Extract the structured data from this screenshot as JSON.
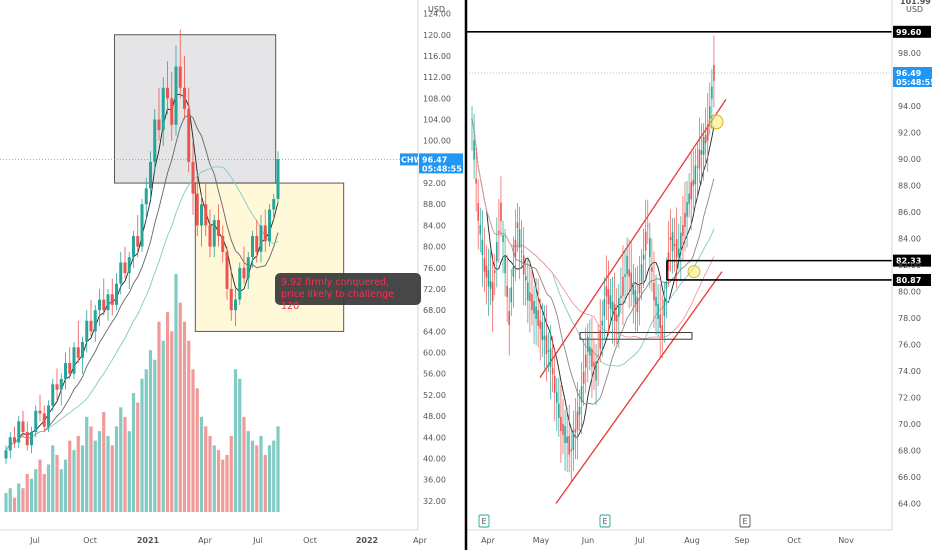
{
  "colors": {
    "up": "#26a69a",
    "down": "#ef5350",
    "vol_up": "#80cbc4",
    "vol_down": "#f19a9a",
    "price_tag": "#2196f3",
    "note_text": "#ff2a55",
    "channel": "#e53935"
  },
  "note": {
    "text": "9.92 firmly conquered, price likely to challenge 120"
  },
  "chart_data": [
    {
      "type": "candlestick",
      "timeframe": "weekly",
      "symbol": "CHWY",
      "currency": "USD",
      "last_price": 96.47,
      "countdown": "05:48:55",
      "y_ticks": [
        "124.00",
        "120.00",
        "116.00",
        "112.00",
        "108.00",
        "104.00",
        "100.00",
        "96.00",
        "92.00",
        "88.00",
        "84.00",
        "80.00",
        "76.00",
        "72.00",
        "68.00",
        "64.00",
        "60.00",
        "56.00",
        "52.00",
        "48.00",
        "44.00",
        "40.00",
        "36.00",
        "32.00"
      ],
      "x_ticks": [
        "Jul",
        "Oct",
        "2021",
        "Apr",
        "Jul",
        "Oct",
        "2022",
        "Apr"
      ],
      "ylim": [
        28,
        126
      ],
      "candles": [
        [
          40,
          42.5,
          39,
          41.5
        ],
        [
          41.5,
          45,
          40,
          44
        ],
        [
          44,
          46,
          42,
          43
        ],
        [
          43,
          48,
          42,
          47
        ],
        [
          47,
          49,
          44,
          45
        ],
        [
          45,
          47,
          41.5,
          42.5
        ],
        [
          42.5,
          46,
          41,
          45
        ],
        [
          45,
          50,
          44,
          49
        ],
        [
          49,
          52,
          47,
          48.5
        ],
        [
          48.5,
          50,
          45,
          46
        ],
        [
          46,
          51,
          45,
          50
        ],
        [
          50,
          55,
          49,
          54
        ],
        [
          54,
          57,
          51,
          53
        ],
        [
          53,
          56,
          50,
          55
        ],
        [
          55,
          60,
          53,
          58
        ],
        [
          58,
          61,
          55,
          56
        ],
        [
          56,
          62,
          55,
          61
        ],
        [
          61,
          66,
          58,
          59
        ],
        [
          59,
          63,
          56,
          62
        ],
        [
          62,
          68,
          60,
          66
        ],
        [
          66,
          70,
          63,
          64
        ],
        [
          64,
          69,
          62,
          68
        ],
        [
          68,
          72,
          65,
          70
        ],
        [
          70,
          74,
          67,
          68
        ],
        [
          68,
          72,
          66,
          71
        ],
        [
          71,
          74,
          67,
          69
        ],
        [
          69,
          75,
          68,
          73
        ],
        [
          73,
          79,
          71,
          77
        ],
        [
          77,
          80,
          74,
          75
        ],
        [
          75,
          79,
          72,
          78
        ],
        [
          78,
          83,
          76,
          82
        ],
        [
          82,
          86,
          78,
          80
        ],
        [
          80,
          89,
          79,
          88
        ],
        [
          88,
          93,
          85,
          91
        ],
        [
          91,
          98,
          89,
          96
        ],
        [
          96,
          106,
          94,
          104
        ],
        [
          104,
          110,
          100,
          102
        ],
        [
          102,
          112,
          99,
          110
        ],
        [
          110,
          115,
          105,
          108
        ],
        [
          108,
          113,
          100,
          103
        ],
        [
          103,
          118,
          101,
          114
        ],
        [
          114,
          121,
          108,
          110
        ],
        [
          110,
          116,
          104,
          106
        ],
        [
          106,
          110,
          94,
          96
        ],
        [
          96,
          100,
          86,
          90
        ],
        [
          90,
          94,
          82,
          84
        ],
        [
          84,
          90,
          80,
          88
        ],
        [
          88,
          92,
          82,
          84
        ],
        [
          84,
          87,
          78,
          80
        ],
        [
          80,
          86,
          78,
          85
        ],
        [
          85,
          88,
          80,
          82
        ],
        [
          82,
          84,
          77,
          79
        ],
        [
          79,
          80,
          70,
          72
        ],
        [
          72,
          76,
          66,
          68
        ],
        [
          68,
          72,
          65,
          70
        ],
        [
          70,
          77,
          69,
          76
        ],
        [
          76,
          80,
          73,
          74
        ],
        [
          74,
          79,
          72,
          78
        ],
        [
          78,
          83,
          76,
          82
        ],
        [
          82,
          85,
          77,
          79
        ],
        [
          79,
          86,
          77,
          84
        ],
        [
          84,
          87,
          79,
          81
        ],
        [
          81,
          88,
          80,
          87
        ],
        [
          87,
          90,
          85,
          89
        ],
        [
          89,
          98,
          88,
          96.5
        ]
      ],
      "volume": [
        34,
        35,
        33,
        36,
        35,
        38,
        37,
        39,
        41,
        38,
        40,
        44,
        42,
        39,
        41,
        45,
        43,
        46,
        44,
        50,
        48,
        45,
        47,
        51,
        46,
        44,
        48,
        52,
        50,
        47,
        55,
        53,
        58,
        60,
        64,
        62,
        70,
        66,
        72,
        68,
        80,
        74,
        70,
        66,
        60,
        56,
        50,
        48,
        46,
        44,
        43,
        41,
        42,
        46,
        60,
        58,
        50,
        47,
        45,
        44,
        46,
        42,
        44,
        45,
        48
      ],
      "volume_ylim": [
        30,
        125
      ],
      "zones": [
        {
          "name": "upper-box",
          "from_bar": 26,
          "to_bar": 63,
          "low": 92,
          "high": 120
        },
        {
          "name": "lower-box",
          "from_bar": 45,
          "to_bar": 79,
          "low": 64,
          "high": 92
        }
      ]
    },
    {
      "type": "candlestick",
      "timeframe": "daily",
      "currency": "USD",
      "last_price": 96.49,
      "countdown": "05:48:55",
      "top_label": "101.99",
      "y_ticks": [
        "98.00",
        "96.00",
        "94.00",
        "92.00",
        "90.00",
        "88.00",
        "86.00",
        "84.00",
        "82.00",
        "80.00",
        "78.00",
        "76.00",
        "74.00",
        "72.00",
        "70.00",
        "68.00",
        "66.00",
        "64.00"
      ],
      "x_ticks": [
        "Apr",
        "May",
        "Jun",
        "Jul",
        "Aug",
        "Sep",
        "Oct",
        "Nov"
      ],
      "ylim": [
        62,
        102
      ],
      "levels": [
        {
          "label": "99.60",
          "value": 99.6
        },
        {
          "label": "82.33",
          "value": 82.33
        },
        {
          "label": "80.87",
          "value": 80.87
        }
      ],
      "earnings_markers": [
        "E",
        "E",
        "E"
      ]
    }
  ]
}
